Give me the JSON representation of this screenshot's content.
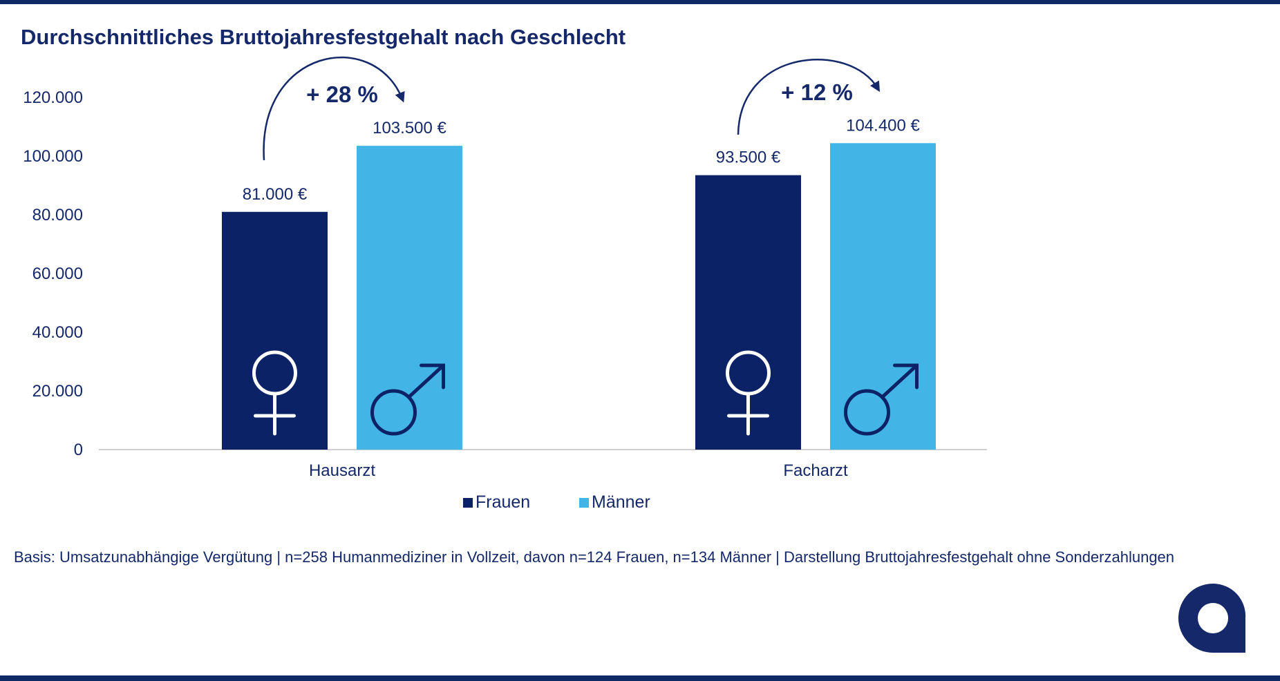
{
  "chart_data": {
    "type": "bar",
    "title": "Durchschnittliches Bruttojahresfestgehalt nach Geschlecht",
    "categories": [
      "Hausarzt",
      "Facharzt"
    ],
    "series": [
      {
        "name": "Frauen",
        "values": [
          81000,
          93500
        ],
        "labels": [
          "81.000 €",
          "93.500 €"
        ],
        "color": "#0b2266",
        "icon": "female-symbol-icon"
      },
      {
        "name": "Männer",
        "values": [
          103500,
          104400
        ],
        "labels": [
          "103.500 €",
          "104.400 €"
        ],
        "color": "#42b5e6",
        "icon": "male-symbol-icon"
      }
    ],
    "ylim": [
      0,
      120000
    ],
    "yticks": [
      0,
      20000,
      40000,
      60000,
      80000,
      100000,
      120000
    ],
    "ytick_labels": [
      "0",
      "20.000",
      "40.000",
      "60.000",
      "80.000",
      "100.000",
      "120.000"
    ],
    "annotations": [
      "+ 28 %",
      "+ 12 %"
    ],
    "legend_position": "bottom",
    "grid": false
  },
  "footnote": "Basis: Umsatzunabhängige Vergütung | n=258 Humanmediziner in Vollzeit, davon n=124 Frauen, n=134 Männer | Darstellung Bruttojahresfestgehalt ohne Sonderzahlungen",
  "colors": {
    "brand_dark": "#0e2a64",
    "accent_light": "#42b5e6",
    "axis": "#d0d0d0"
  },
  "logo_icon": "company-logo-icon"
}
